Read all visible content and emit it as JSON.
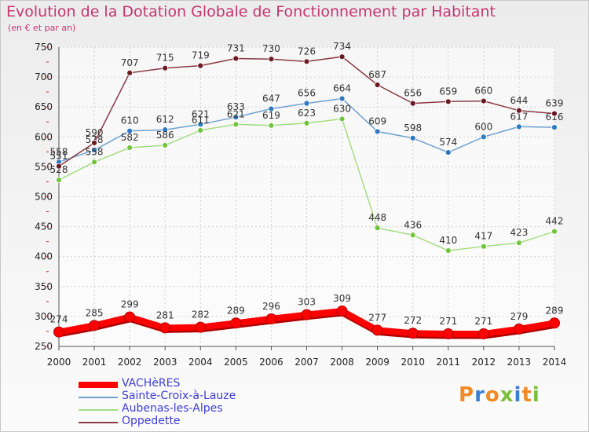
{
  "title": "Evolution de la Dotation Globale de Fonctionnement par Habitant",
  "subtitle": "(en € et par an)",
  "logo": {
    "text": "Proxiti",
    "colors": [
      "#f08a24",
      "#3a7fd0",
      "#f08a24",
      "#7cbf3c",
      "#3a7fd0",
      "#f08a24",
      "#7cbf3c"
    ]
  },
  "chart_data": {
    "type": "line",
    "x": [
      "2000",
      "2001",
      "2002",
      "2003",
      "2004",
      "2005",
      "2006",
      "2007",
      "2008",
      "2009",
      "2010",
      "2011",
      "2012",
      "2013",
      "2014"
    ],
    "ylim": [
      250,
      750
    ],
    "yticks": [
      250,
      300,
      350,
      400,
      450,
      500,
      550,
      600,
      650,
      700,
      750
    ],
    "grid": true,
    "legend": "bottom-left",
    "series": [
      {
        "name": "VACHèRES",
        "color": "#ff0000",
        "thick": true,
        "values": [
          274,
          285,
          299,
          281,
          282,
          289,
          296,
          303,
          309,
          277,
          272,
          271,
          271,
          279,
          289
        ]
      },
      {
        "name": "Sainte-Croix-à-Lauze",
        "color": "#6fa0cf",
        "point": "#2f79c0",
        "thick": false,
        "values": [
          558,
          578,
          610,
          612,
          621,
          633,
          647,
          656,
          664,
          609,
          598,
          574,
          600,
          617,
          616
        ]
      },
      {
        "name": "Aubenas-les-Alpes",
        "color": "#a6dc84",
        "point": "#72c43e",
        "thick": false,
        "values": [
          528,
          558,
          582,
          586,
          611,
          621,
          619,
          623,
          630,
          448,
          436,
          410,
          417,
          423,
          442
        ]
      },
      {
        "name": "Oppedette",
        "color": "#8a3a44",
        "point": "#6b1a22",
        "thick": false,
        "values": [
          551,
          590,
          707,
          715,
          719,
          731,
          730,
          726,
          734,
          687,
          656,
          659,
          660,
          644,
          639
        ]
      }
    ]
  }
}
